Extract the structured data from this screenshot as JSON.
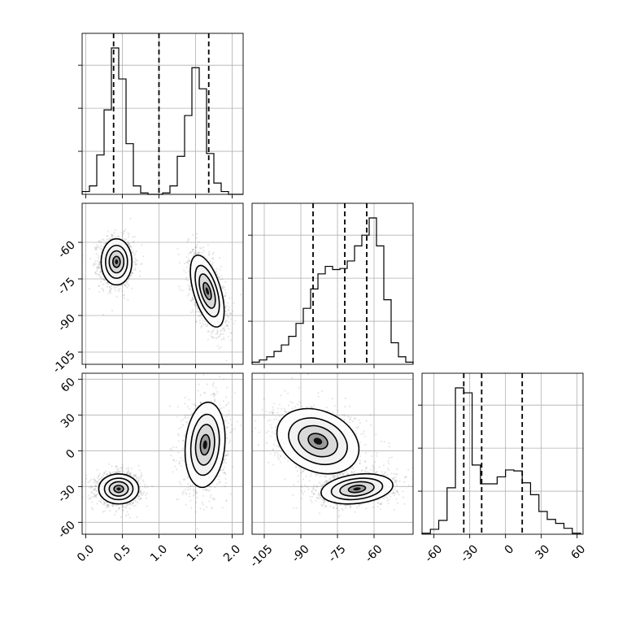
{
  "chart_data": {
    "type": "corner",
    "parameters": [
      {
        "id": "p0",
        "ticks": [
          "0.0",
          "0.5",
          "1.0",
          "1.5",
          "2.0"
        ],
        "tick_values": [
          0.0,
          0.5,
          1.0,
          1.5,
          2.0
        ],
        "range": [
          -0.05,
          2.15
        ]
      },
      {
        "id": "p1",
        "ticks": [
          "-60",
          "-75",
          "-90",
          "-105"
        ],
        "tick_values": [
          -60,
          -75,
          -90,
          -105
        ],
        "range": [
          -110,
          -44
        ]
      },
      {
        "id": "p2",
        "ticks": [
          "-60",
          "-30",
          "0",
          "30",
          "60"
        ],
        "tick_values": [
          -60,
          -30,
          0,
          30,
          60
        ],
        "range": [
          -70,
          65
        ]
      }
    ],
    "grid": true,
    "marginals": [
      {
        "param": "p0",
        "bin_edges": [
          -0.05,
          0.05,
          0.15,
          0.25,
          0.35,
          0.45,
          0.55,
          0.65,
          0.75,
          0.85,
          0.95,
          1.05,
          1.15,
          1.25,
          1.35,
          1.45,
          1.55,
          1.65,
          1.75,
          1.85,
          1.95,
          2.05,
          2.15
        ],
        "counts": [
          2,
          6,
          28,
          60,
          104,
          82,
          36,
          6,
          1,
          0,
          0,
          1,
          6,
          27,
          56,
          90,
          75,
          29,
          8,
          2,
          0,
          0
        ],
        "quantiles": [
          0.38,
          1.0,
          1.68
        ]
      },
      {
        "param": "p1",
        "bin_edges": [
          -110,
          -107,
          -104,
          -101,
          -98,
          -95,
          -92,
          -89,
          -86,
          -83,
          -80,
          -77,
          -74,
          -71,
          -68,
          -65,
          -62,
          -59,
          -56,
          -53,
          -50,
          -47,
          -44
        ],
        "counts": [
          2,
          4,
          7,
          12,
          18,
          26,
          38,
          52,
          70,
          84,
          91,
          88,
          89,
          96,
          110,
          120,
          136,
          110,
          60,
          20,
          7,
          2
        ],
        "quantiles": [
          -85,
          -72,
          -63
        ]
      },
      {
        "param": "p2",
        "bin_edges": [
          -70,
          -63,
          -56,
          -49,
          -42,
          -35,
          -28,
          -21,
          -14,
          -7,
          0,
          7,
          14,
          21,
          28,
          35,
          42,
          49,
          56,
          63
        ],
        "counts": [
          1,
          5,
          14,
          47,
          148,
          143,
          70,
          51,
          51,
          58,
          65,
          64,
          52,
          40,
          23,
          15,
          11,
          6,
          1
        ],
        "quantiles": [
          -35,
          -20,
          14
        ]
      }
    ],
    "joints": [
      {
        "x": "p0",
        "y": "p1",
        "modes": [
          {
            "cx": 0.42,
            "cy": -68,
            "sx": 0.1,
            "sy": 4.5,
            "rho": 0.0,
            "weight": 0.5
          },
          {
            "cx": 1.66,
            "cy": -80,
            "sx": 0.11,
            "sy": 7.0,
            "rho": -0.55,
            "weight": 0.5
          }
        ]
      },
      {
        "x": "p0",
        "y": "p2",
        "modes": [
          {
            "cx": 0.45,
            "cy": -32,
            "sx": 0.13,
            "sy": 6.0,
            "rho": 0.0,
            "weight": 0.5
          },
          {
            "cx": 1.63,
            "cy": 5,
            "sx": 0.13,
            "sy": 17.0,
            "rho": 0.15,
            "weight": 0.5
          }
        ]
      },
      {
        "x": "p1",
        "y": "p2",
        "modes": [
          {
            "cx": -83,
            "cy": 8,
            "sx": 8.0,
            "sy": 13.0,
            "rho": -0.25,
            "weight": 0.5
          },
          {
            "cx": -67,
            "cy": -32,
            "sx": 7.0,
            "sy": 6.0,
            "rho": 0.25,
            "weight": 0.5
          }
        ]
      }
    ]
  }
}
